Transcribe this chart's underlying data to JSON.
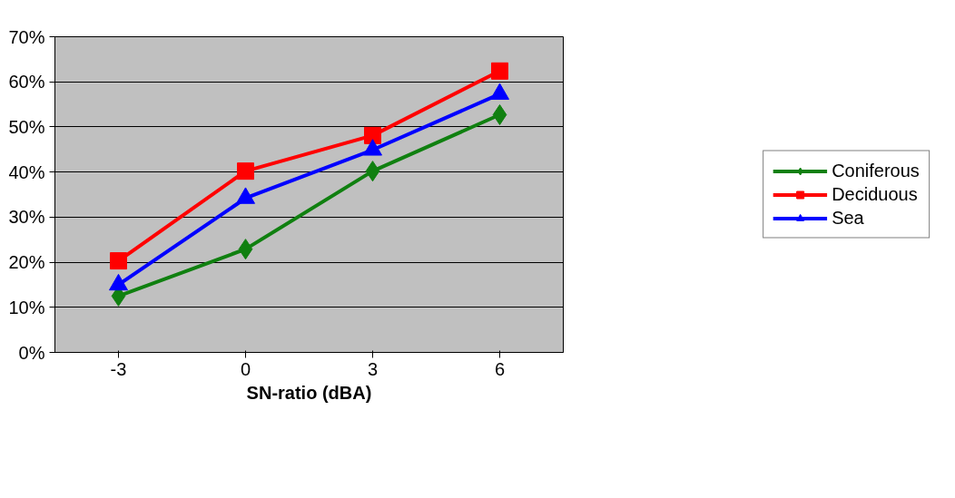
{
  "chart_data": {
    "type": "line",
    "xlabel": "SN-ratio (dBA)",
    "categories": [
      "-3",
      "0",
      "3",
      "6"
    ],
    "series": [
      {
        "name": "Coniferous",
        "color": "#108010",
        "marker": "diamond",
        "values": [
          12.5,
          22.9,
          40.2,
          52.7
        ]
      },
      {
        "name": "Deciduous",
        "color": "#ff0000",
        "marker": "square",
        "values": [
          20.3,
          40.2,
          48.1,
          62.4
        ]
      },
      {
        "name": "Sea",
        "color": "#0000ff",
        "marker": "triangle",
        "values": [
          15,
          34.2,
          44.9,
          57.3
        ]
      }
    ],
    "ylim": [
      0,
      70
    ],
    "yticks": [
      {
        "value": 0,
        "label": "0%"
      },
      {
        "value": 10,
        "label": "10%"
      },
      {
        "value": 20,
        "label": "20%"
      },
      {
        "value": 30,
        "label": "30%"
      },
      {
        "value": 40,
        "label": "40%"
      },
      {
        "value": 50,
        "label": "50%"
      },
      {
        "value": 60,
        "label": "60%"
      },
      {
        "value": 70,
        "label": "70%"
      }
    ],
    "grid": "y",
    "legend": "right",
    "line_style": "solid"
  }
}
